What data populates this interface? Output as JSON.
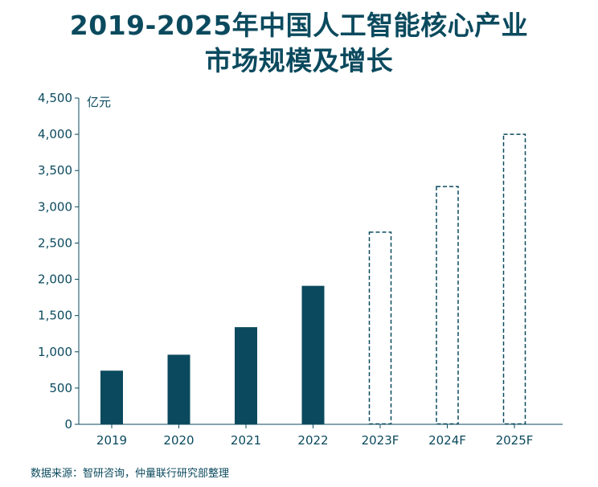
{
  "title_lines": [
    "2019-2025年中国人工智能核心产业",
    "市场规模及增长"
  ],
  "source": "数据来源：智研咨询，仲量联行研究部整理",
  "colors": {
    "bar": "#0b4a5e",
    "text": "#0b4a5e",
    "axis": "#0b4a5e"
  },
  "chart_data": {
    "type": "bar",
    "title": "2019-2025年中国人工智能核心产业市场规模及增长",
    "ylabel": "亿元",
    "xlabel": "",
    "ylim": [
      0,
      4500
    ],
    "yticks": [
      0,
      500,
      1000,
      1500,
      2000,
      2500,
      3000,
      3500,
      4000,
      4500
    ],
    "ytick_labels": [
      "0",
      "500",
      "1,000",
      "1,500",
      "2,000",
      "2,500",
      "3,000",
      "3,500",
      "4,000",
      "4,500"
    ],
    "categories": [
      "2019",
      "2020",
      "2021",
      "2022",
      "2023F",
      "2024F",
      "2025F"
    ],
    "values": [
      740,
      960,
      1340,
      1910,
      2650,
      3280,
      4000
    ],
    "forecast": [
      false,
      false,
      false,
      false,
      true,
      true,
      true
    ],
    "grid": false,
    "legend": "none"
  }
}
